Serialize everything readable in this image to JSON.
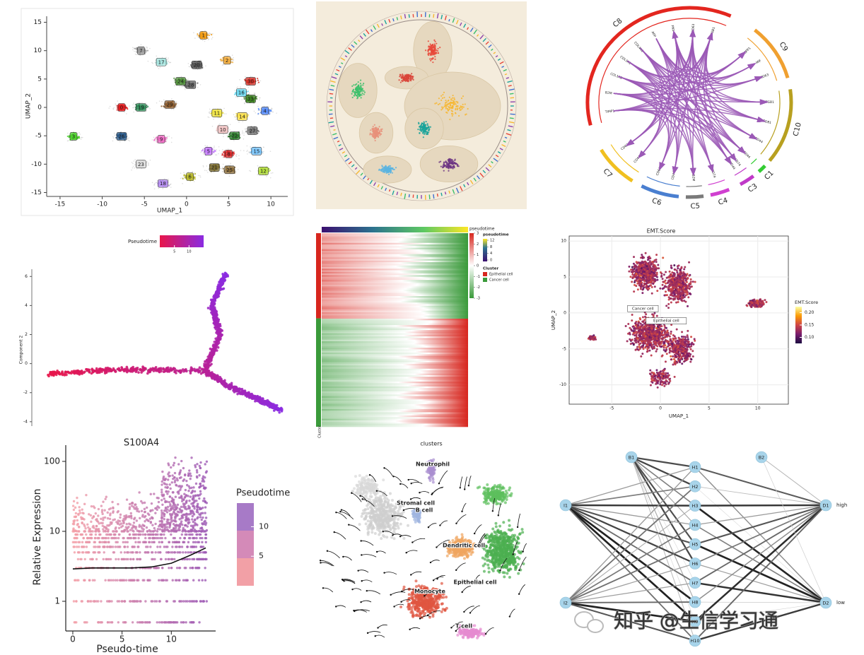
{
  "chart_data": [
    {
      "type": "scatter",
      "xlabel": "UMAP_1",
      "ylabel": "UMAP_2",
      "xlim": [
        -16,
        12
      ],
      "ylim": [
        -15.5,
        16
      ],
      "xticks": [
        -15,
        -10,
        -5,
        0,
        5,
        10
      ],
      "yticks": [
        -15,
        -10,
        -5,
        0,
        5,
        10,
        15
      ],
      "clusters": [
        {
          "label": "0",
          "x": -7.7,
          "y": 0,
          "color": "#e41a1c"
        },
        {
          "label": "1",
          "x": 2.0,
          "y": 12.7,
          "color": "#f39c12"
        },
        {
          "label": "2",
          "x": 4.8,
          "y": 8.3,
          "color": "#f5b041"
        },
        {
          "label": "3",
          "x": -13.4,
          "y": -5.1,
          "color": "#4cd12c"
        },
        {
          "label": "4",
          "x": 9.3,
          "y": -0.6,
          "color": "#5b8ff9"
        },
        {
          "label": "5",
          "x": 2.6,
          "y": -7.7,
          "color": "#c77cff"
        },
        {
          "label": "6",
          "x": 0.4,
          "y": -12.2,
          "color": "#b5b52a"
        },
        {
          "label": "7",
          "x": -5.4,
          "y": 10,
          "color": "#9a9a9a"
        },
        {
          "label": "8",
          "x": 5.0,
          "y": -8.2,
          "color": "#d62728"
        },
        {
          "label": "9",
          "x": -3.0,
          "y": -5.6,
          "color": "#f06ec6"
        },
        {
          "label": "10",
          "x": 4.3,
          "y": -3.9,
          "color": "#f4c6c6"
        },
        {
          "label": "11",
          "x": 3.6,
          "y": -1.0,
          "color": "#f0e442"
        },
        {
          "label": "12",
          "x": 9.1,
          "y": -11.2,
          "color": "#b3de3c"
        },
        {
          "label": "13",
          "x": 7.6,
          "y": 1.5,
          "color": "#3a7d1e"
        },
        {
          "label": "14",
          "x": 6.6,
          "y": -1.6,
          "color": "#ffe34d"
        },
        {
          "label": "15",
          "x": 8.3,
          "y": -7.7,
          "color": "#7ec8ff"
        },
        {
          "label": "16",
          "x": 6.5,
          "y": 2.6,
          "color": "#6fd8ef"
        },
        {
          "label": "17",
          "x": -3.0,
          "y": 8.0,
          "color": "#a8e6e0"
        },
        {
          "label": "18",
          "x": -2.8,
          "y": -13.4,
          "color": "#b48cf0"
        },
        {
          "label": "19",
          "x": -5.4,
          "y": 0,
          "color": "#2e8b57"
        },
        {
          "label": "20",
          "x": 1.2,
          "y": 7.5,
          "color": "#555555"
        },
        {
          "label": "21",
          "x": 3.3,
          "y": -10.6,
          "color": "#7a6b2f"
        },
        {
          "label": "22",
          "x": 5.7,
          "y": -5.0,
          "color": "#2d7d2d"
        },
        {
          "label": "23",
          "x": -5.4,
          "y": -10.0,
          "color": "#dddddd"
        },
        {
          "label": "24",
          "x": -0.7,
          "y": 4.6,
          "color": "#4f8f3a"
        },
        {
          "label": "25",
          "x": 5.1,
          "y": -11.0,
          "color": "#8c6d3a"
        },
        {
          "label": "26",
          "x": -7.7,
          "y": -5.1,
          "color": "#2a5a8a"
        },
        {
          "label": "27",
          "x": 7.8,
          "y": -4.1,
          "color": "#777777"
        },
        {
          "label": "28",
          "x": 0.5,
          "y": 4.0,
          "color": "#666666"
        },
        {
          "label": "29",
          "x": -2.0,
          "y": 0.5,
          "color": "#8b5a2b"
        },
        {
          "label": "30",
          "x": 7.6,
          "y": 4.6,
          "color": "#d73027"
        }
      ]
    },
    {
      "type": "circular-embedding"
    },
    {
      "type": "chord",
      "link_color": "#9b59b6",
      "sectors": [
        {
          "name": "C8",
          "start": -104,
          "end": 24,
          "color": "#e3261f",
          "genes": [
            "TIMP1",
            "B2M",
            "COL1A2",
            "COL1A1",
            "COL4A1",
            "APP",
            "FN1",
            "CD63",
            "ITGB1"
          ]
        },
        {
          "name": "C9",
          "start": 40,
          "end": 75,
          "color": "#f0a030",
          "genes": [
            "SPP1",
            "MIF",
            "CD63"
          ]
        },
        {
          "name": "C10",
          "start": 82,
          "end": 128,
          "color": "#b8a020",
          "genes": [
            "ITGB1",
            "CD81",
            "CD44"
          ]
        },
        {
          "name": "C1",
          "start": 132,
          "end": 137,
          "color": "#33cc33",
          "genes": [
            "CD44"
          ]
        },
        {
          "name": "C3",
          "start": 141,
          "end": 150,
          "color": "#c03ac8",
          "genes": [
            "CD74",
            "CD44"
          ]
        },
        {
          "name": "C4",
          "start": 157,
          "end": 168,
          "color": "#d040d0",
          "genes": [
            "CD74"
          ]
        },
        {
          "name": "C5",
          "start": 172,
          "end": 182,
          "color": "#7a7a7a",
          "genes": [
            "B2M"
          ]
        },
        {
          "name": "C6",
          "start": 186,
          "end": 208,
          "color": "#4a7fd0",
          "genes": [
            "CD44",
            "CD63"
          ]
        },
        {
          "name": "C7",
          "start": 214,
          "end": 240,
          "color": "#f0c020",
          "genes": [
            "CD44",
            "CD63"
          ]
        }
      ]
    },
    {
      "type": "trajectory",
      "ylabel": "Component 2",
      "legend_title": "Pseudotime",
      "ylim": [
        -4.3,
        6.5
      ],
      "yticks": [
        -4,
        -2,
        0,
        2,
        4,
        6
      ],
      "xlim": [
        -10,
        8
      ],
      "clim": [
        0,
        15
      ],
      "cticks": [
        5,
        10
      ],
      "colors": [
        "#e8164a",
        "#8a2be2"
      ],
      "branches": [
        {
          "x": [
            -9.0,
            -4.0,
            1.9
          ],
          "y": [
            -0.7,
            -0.4,
            -0.5
          ]
        },
        {
          "x": [
            1.9,
            3.0,
            2.4,
            3.4
          ],
          "y": [
            -0.5,
            2.0,
            4.0,
            6.2
          ]
        },
        {
          "x": [
            1.9,
            3.5,
            5.5,
            7.3
          ],
          "y": [
            -0.5,
            -1.5,
            -2.4,
            -3.2
          ]
        }
      ]
    },
    {
      "type": "heatmap",
      "annotation_label": "pseudotime",
      "row_label": "Cluster",
      "scale_ticks": [
        3,
        2,
        1,
        0,
        -1,
        -2,
        -3
      ],
      "pseudotime_title": "pseudotime",
      "pseudotime_ticks": [
        12,
        8,
        4,
        0
      ],
      "cluster_title": "Cluster",
      "groups": [
        {
          "name": "Epithelial cell",
          "color": "#d7261e"
        },
        {
          "name": "Cancer cell",
          "color": "#3a9a3a"
        }
      ]
    },
    {
      "type": "feature-map",
      "title": "EMT.Score",
      "xlabel": "UMAP_1",
      "ylabel": "UMAP_2",
      "xlim": [
        -8,
        13
      ],
      "ylim": [
        -12,
        10.5
      ],
      "xticks": [
        -5,
        0,
        5,
        10
      ],
      "yticks": [
        -10,
        -5,
        0,
        5,
        10
      ],
      "legend_title": "EMT.Score",
      "clim": [
        0.07,
        0.23
      ],
      "cticks": [
        {
          "value": 0.2,
          "label": "0.20"
        },
        0.15,
        {
          "value": 0.1,
          "label": "0.10"
        }
      ],
      "annotations": [
        {
          "text": "Cancer cell",
          "x": -1.8,
          "y": 0.6
        },
        {
          "text": "Epithelial cell",
          "x": 0.6,
          "y": -1.1
        }
      ]
    },
    {
      "type": "expression",
      "title": "S100A4",
      "xlabel": "Pseudo-time",
      "ylabel": "Relative Expression",
      "log_y": true,
      "xlim": [
        -0.5,
        14.5
      ],
      "ylim": [
        0.4,
        160
      ],
      "xticks": [
        0,
        5,
        10
      ],
      "yticks": [
        1,
        10,
        100
      ],
      "legend_title": "Pseudotime",
      "cticks": [
        10,
        5
      ],
      "trend": {
        "x": [
          0,
          2,
          4,
          6,
          8,
          10,
          12,
          13.5
        ],
        "y": [
          2.9,
          3,
          3,
          3,
          3.1,
          3.5,
          4.6,
          5.8
        ]
      }
    },
    {
      "type": "velocity",
      "title": "clusters",
      "labels": [
        "Neutrophil",
        "Stromal cell",
        "B cell",
        "Dendritic cell",
        "Epithelial cell",
        "Monocyte",
        "T cell"
      ]
    },
    {
      "type": "network",
      "inputs": [
        "B1",
        "B2",
        "I1",
        "I2"
      ],
      "hidden": [
        "H1",
        "H2",
        "H3",
        "H4",
        "H5",
        "H6",
        "H7",
        "H8",
        "H9",
        "H10"
      ],
      "outputs": [
        "D1",
        "D2"
      ],
      "output_labels": [
        "high",
        "low"
      ]
    }
  ],
  "watermark": "知乎 @生信学习通"
}
